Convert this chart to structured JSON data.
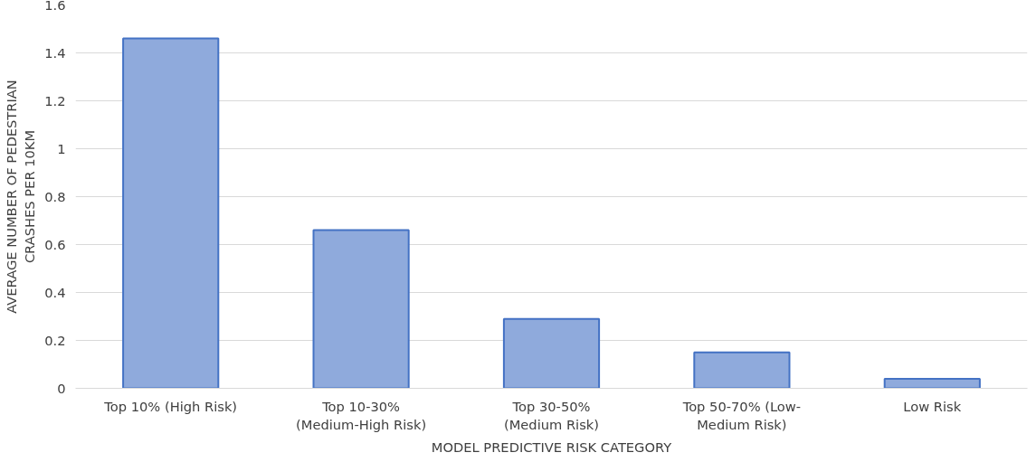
{
  "chart_data": {
    "type": "bar",
    "xlabel": "MODEL PREDICTIVE RISK CATEGORY",
    "ylabel": "AVERAGE NUMBER OF PEDESTRIAN\nCRASHES PER 10KM",
    "categories": [
      "Top 10% (High Risk)",
      "Top 10-30%\n(Medium-High Risk)",
      "Top 30-50%\n(Medium Risk)",
      "Top 50-70% (Low-\nMedium Risk)",
      "Low Risk"
    ],
    "values": [
      1.46,
      0.66,
      0.29,
      0.15,
      0.04
    ],
    "color": "#8faadc",
    "ylim": [
      0,
      1.6
    ],
    "yticks": [
      0,
      0.2,
      0.4,
      0.6,
      0.8,
      1,
      1.2,
      1.4,
      1.6
    ],
    "grid": "y"
  }
}
